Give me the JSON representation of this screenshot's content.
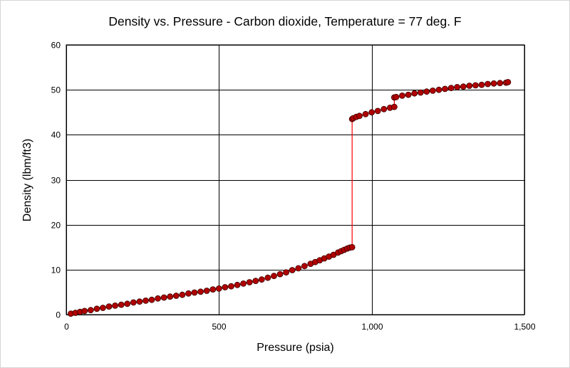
{
  "chart_data": {
    "type": "line",
    "title": "Density vs. Pressure - Carbon dioxide, Temperature = 77 deg. F",
    "xlabel": "Pressure (psia)",
    "ylabel": "Density (lbm/ft3)",
    "xlim": [
      0,
      1500
    ],
    "ylim": [
      0,
      60
    ],
    "xticks": [
      0,
      500,
      1000,
      1500
    ],
    "xtick_labels": [
      "0",
      "500",
      "1,000",
      "1,500"
    ],
    "yticks": [
      0,
      10,
      20,
      30,
      40,
      50,
      60
    ],
    "ytick_labels": [
      "0",
      "10",
      "20",
      "30",
      "40",
      "50",
      "60"
    ],
    "grid": true,
    "legend": "none",
    "series": [
      {
        "name": "Carbon dioxide",
        "line_color": "#ff0000",
        "marker_color": "#b00000",
        "x": [
          15,
          30,
          45,
          60,
          80,
          100,
          120,
          140,
          160,
          180,
          200,
          220,
          240,
          260,
          280,
          300,
          320,
          340,
          360,
          380,
          400,
          420,
          440,
          460,
          480,
          500,
          520,
          540,
          560,
          580,
          600,
          620,
          640,
          660,
          680,
          700,
          720,
          740,
          760,
          780,
          800,
          815,
          830,
          845,
          860,
          875,
          890,
          900,
          910,
          920,
          928,
          936,
          936,
          940,
          950,
          960,
          980,
          1000,
          1020,
          1040,
          1060,
          1074,
          1074,
          1080,
          1100,
          1120,
          1140,
          1160,
          1180,
          1200,
          1220,
          1240,
          1260,
          1280,
          1300,
          1320,
          1340,
          1360,
          1380,
          1400,
          1420,
          1440,
          1446
        ],
        "y": [
          0.2,
          0.4,
          0.6,
          0.8,
          1.0,
          1.3,
          1.5,
          1.8,
          2.0,
          2.2,
          2.4,
          2.7,
          2.9,
          3.1,
          3.3,
          3.6,
          3.8,
          4.0,
          4.2,
          4.4,
          4.7,
          4.9,
          5.1,
          5.3,
          5.6,
          5.8,
          6.1,
          6.3,
          6.6,
          6.9,
          7.2,
          7.5,
          7.8,
          8.2,
          8.6,
          9.0,
          9.4,
          9.9,
          10.3,
          10.8,
          11.3,
          11.7,
          12.1,
          12.5,
          12.9,
          13.3,
          13.8,
          14.1,
          14.4,
          14.7,
          14.9,
          15.0,
          43.5,
          43.7,
          44.0,
          44.2,
          44.6,
          45.0,
          45.3,
          45.7,
          46.0,
          46.2,
          48.3,
          48.4,
          48.7,
          48.9,
          49.2,
          49.4,
          49.6,
          49.8,
          50.0,
          50.2,
          50.4,
          50.6,
          50.7,
          50.9,
          51.0,
          51.1,
          51.3,
          51.4,
          51.5,
          51.6,
          51.7
        ]
      }
    ]
  }
}
